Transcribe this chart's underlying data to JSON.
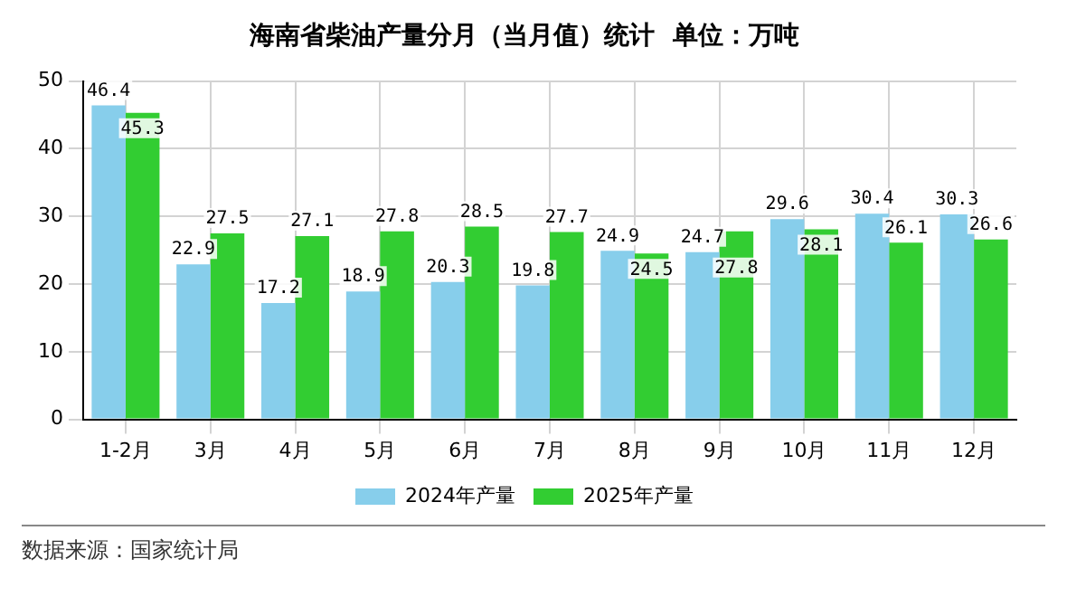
{
  "chart_data": {
    "type": "bar",
    "title": "海南省柴油产量分月（当月值）统计  单位：万吨",
    "categories": [
      "1-2月",
      "3月",
      "4月",
      "5月",
      "6月",
      "7月",
      "8月",
      "9月",
      "10月",
      "11月",
      "12月"
    ],
    "series": [
      {
        "name": "2024年产量",
        "color": "#87ceeb",
        "values": [
          46.4,
          22.9,
          17.2,
          18.9,
          20.3,
          19.8,
          24.9,
          24.7,
          29.6,
          30.4,
          30.3
        ]
      },
      {
        "name": "2025年产量",
        "color": "#32cd32",
        "values": [
          45.3,
          27.5,
          27.1,
          27.8,
          28.5,
          27.7,
          24.5,
          27.8,
          28.1,
          26.1,
          26.6
        ]
      }
    ],
    "ylim": [
      0,
      50
    ],
    "yticks": [
      0,
      10,
      20,
      30,
      40,
      50
    ],
    "grid": true,
    "legend": "bottom",
    "data_labels": true,
    "annotations": [
      "数据来源：国家统计局"
    ]
  }
}
